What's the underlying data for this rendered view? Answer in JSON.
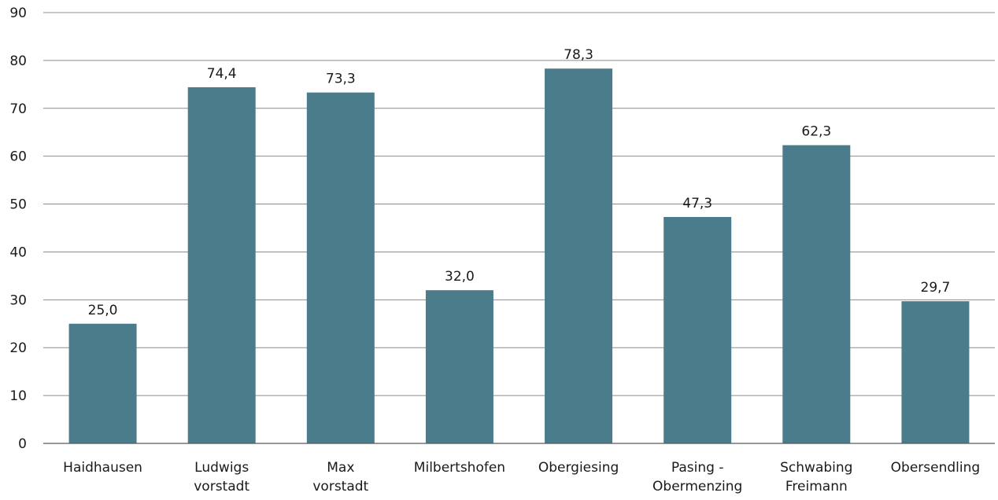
{
  "chart_data": {
    "type": "bar",
    "title": "",
    "xlabel": "",
    "ylabel": "",
    "categories": [
      [
        "Haidhausen"
      ],
      [
        "Ludwigs",
        "vorstadt"
      ],
      [
        "Max",
        "vorstadt"
      ],
      [
        "Milbertshofen"
      ],
      [
        "Obergiesing"
      ],
      [
        "Pasing -",
        "Obermenzing"
      ],
      [
        "Schwabing",
        "Freimann"
      ],
      [
        "Obersendling"
      ]
    ],
    "values": [
      25.0,
      74.4,
      73.3,
      32.0,
      78.3,
      47.3,
      62.3,
      29.7
    ],
    "value_labels": [
      "25,0",
      "74,4",
      "73,3",
      "32,0",
      "78,3",
      "47,3",
      "62,3",
      "29,7"
    ],
    "ylim": [
      0,
      90
    ],
    "yticks": [
      0,
      10,
      20,
      30,
      40,
      50,
      60,
      70,
      80,
      90
    ],
    "grid": true,
    "legend": "none",
    "bar_color": "#4a7c8c"
  }
}
